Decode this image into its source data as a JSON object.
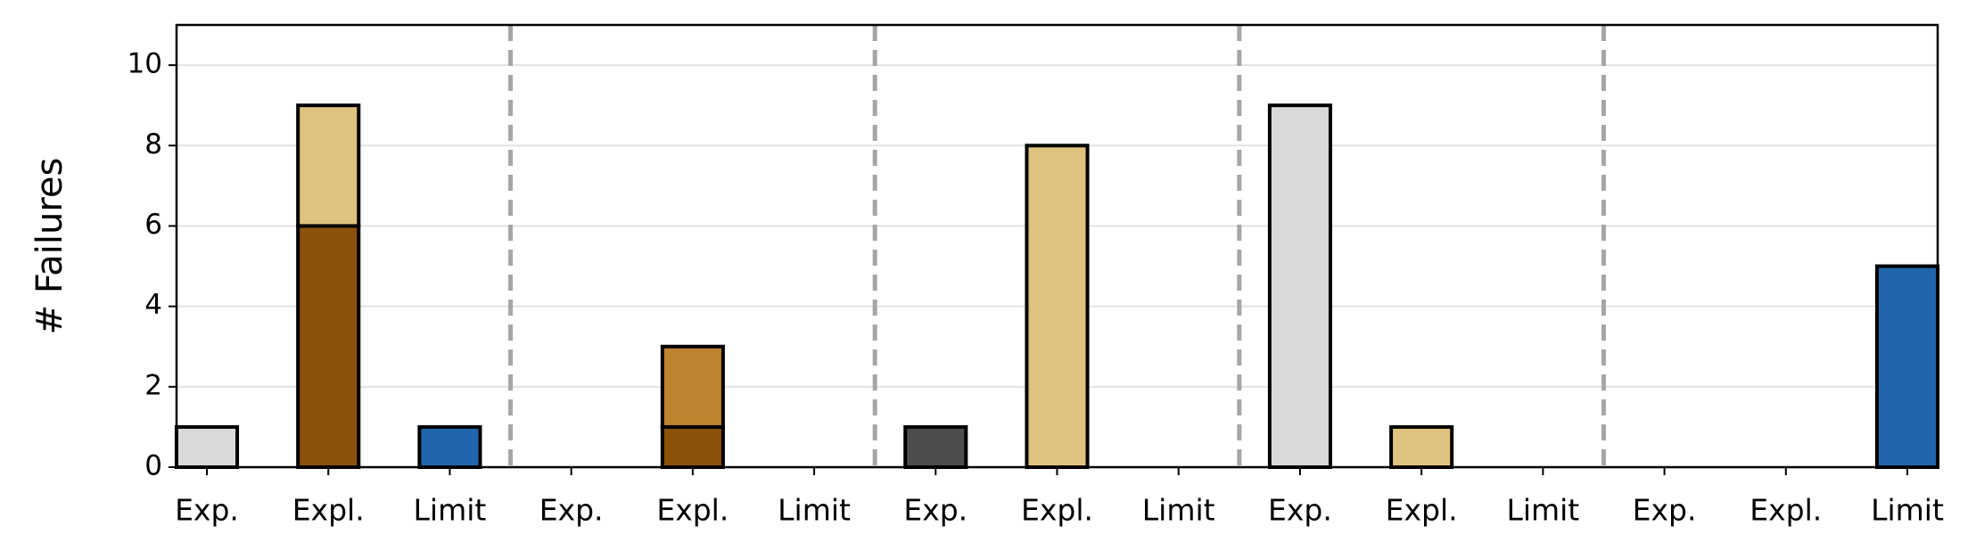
{
  "chart_data": {
    "type": "stacked_bar",
    "y_label": "# Failures",
    "categories": [
      "Exp.",
      "Expl.",
      "Limit",
      "Exp.",
      "Expl.",
      "Limit",
      "Exp.",
      "Expl.",
      "Limit",
      "Exp.",
      "Expl.",
      "Limit",
      "Exp.",
      "Expl.",
      "Limit"
    ],
    "series": [
      {
        "color": "#d9d9d9",
        "values": [
          1,
          null,
          null,
          null,
          null,
          null,
          null,
          null,
          null,
          9,
          null,
          null,
          null,
          null,
          null
        ]
      },
      {
        "color": "#8c510a",
        "values": [
          null,
          6,
          null,
          null,
          1,
          null,
          null,
          null,
          null,
          null,
          null,
          null,
          null,
          null,
          null
        ]
      },
      {
        "color": "#dfc27d",
        "values": [
          null,
          3,
          null,
          null,
          null,
          null,
          null,
          8,
          null,
          null,
          1,
          null,
          null,
          null,
          null
        ]
      },
      {
        "color": "#c0832f",
        "values": [
          null,
          null,
          null,
          null,
          2,
          null,
          null,
          null,
          null,
          null,
          null,
          null,
          null,
          null,
          null
        ]
      },
      {
        "color": "#4d4d4d",
        "values": [
          null,
          null,
          null,
          null,
          null,
          null,
          1,
          null,
          null,
          null,
          null,
          null,
          null,
          null,
          null
        ]
      },
      {
        "color": "#2166ac",
        "values": [
          null,
          null,
          1,
          null,
          null,
          null,
          null,
          null,
          null,
          null,
          null,
          null,
          null,
          null,
          5
        ]
      }
    ],
    "ylim": [
      0,
      11
    ],
    "yticks": [
      0,
      2,
      4,
      6,
      8,
      10
    ],
    "grid": true
  }
}
